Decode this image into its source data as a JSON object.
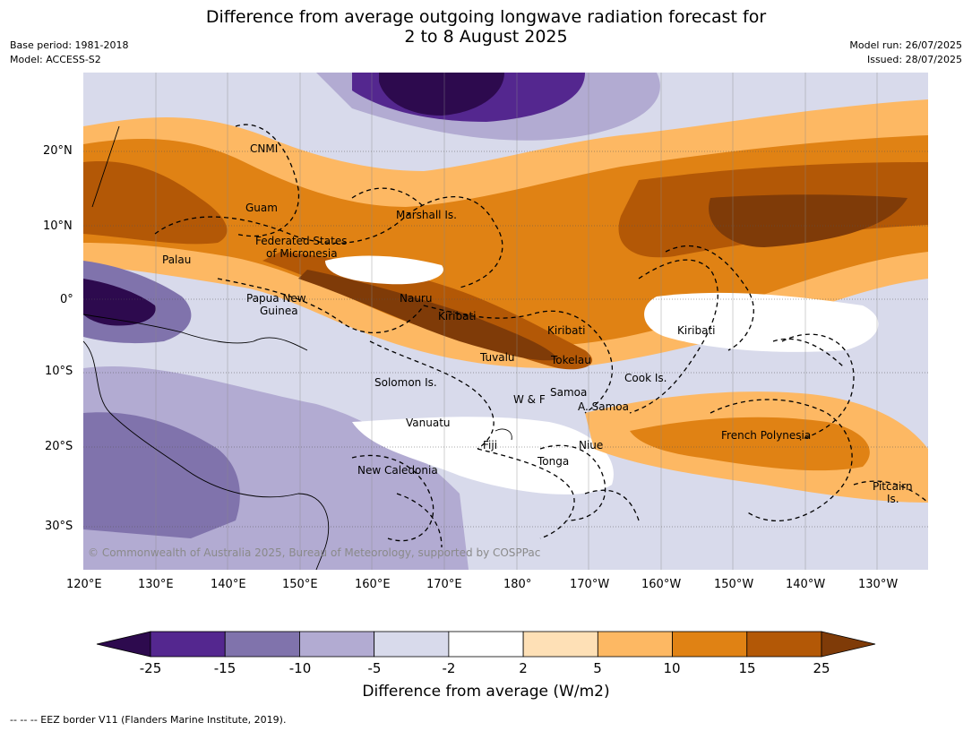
{
  "header": {
    "title_line1": "Difference from average outgoing longwave radiation forecast for",
    "title_line2": "2 to 8 August 2025",
    "base_period": "Base period: 1981-2018",
    "model": "Model: ACCESS-S2",
    "model_run": "Model run: 26/07/2025",
    "issued": "Issued: 28/07/2025"
  },
  "axes": {
    "lon_ticks": [
      "120°E",
      "130°E",
      "140°E",
      "150°E",
      "160°E",
      "170°E",
      "180°",
      "170°W",
      "160°W",
      "150°W",
      "140°W",
      "130°W"
    ],
    "lat_ticks": [
      "20°N",
      "10°N",
      "0°",
      "10°S",
      "20°S",
      "30°S"
    ]
  },
  "places": [
    {
      "name": "CNMI"
    },
    {
      "name": "Guam"
    },
    {
      "name": "Marshall Is."
    },
    {
      "name": "Federated States"
    },
    {
      "name": "of Micronesia"
    },
    {
      "name": "Palau"
    },
    {
      "name": "Papua New"
    },
    {
      "name": "Guinea"
    },
    {
      "name": "Nauru"
    },
    {
      "name": "Kiribati"
    },
    {
      "name": "Kiribati"
    },
    {
      "name": "Kiribati"
    },
    {
      "name": "Tuvalu"
    },
    {
      "name": "Tokelau"
    },
    {
      "name": "Cook Is."
    },
    {
      "name": "Solomon Is."
    },
    {
      "name": "Samoa"
    },
    {
      "name": "W & F"
    },
    {
      "name": "A. Samoa"
    },
    {
      "name": "Vanuatu"
    },
    {
      "name": "Fiji"
    },
    {
      "name": "Niue"
    },
    {
      "name": "French Polynesia"
    },
    {
      "name": "Tonga"
    },
    {
      "name": "New Caledonia"
    },
    {
      "name": "Pitcairn"
    },
    {
      "name": "Is."
    }
  ],
  "copyright": "© Commonwealth of Australia 2025, Bureau of Meteorology, supported by COSPPac",
  "colorbar": {
    "ticks": [
      "-25",
      "-15",
      "-10",
      "-5",
      "-2",
      "2",
      "5",
      "10",
      "15",
      "25"
    ],
    "colors": [
      "#2d0a4e",
      "#54278f",
      "#8073ac",
      "#b2abd2",
      "#d8daeb",
      "#ffffff",
      "#fee0b6",
      "#fdb863",
      "#e08214",
      "#b35806",
      "#7f3b08"
    ],
    "label": "Difference from average (W/m2)"
  },
  "footnote": "--  --  -- EEZ border V11 (Flanders Marine Institute, 2019)."
}
